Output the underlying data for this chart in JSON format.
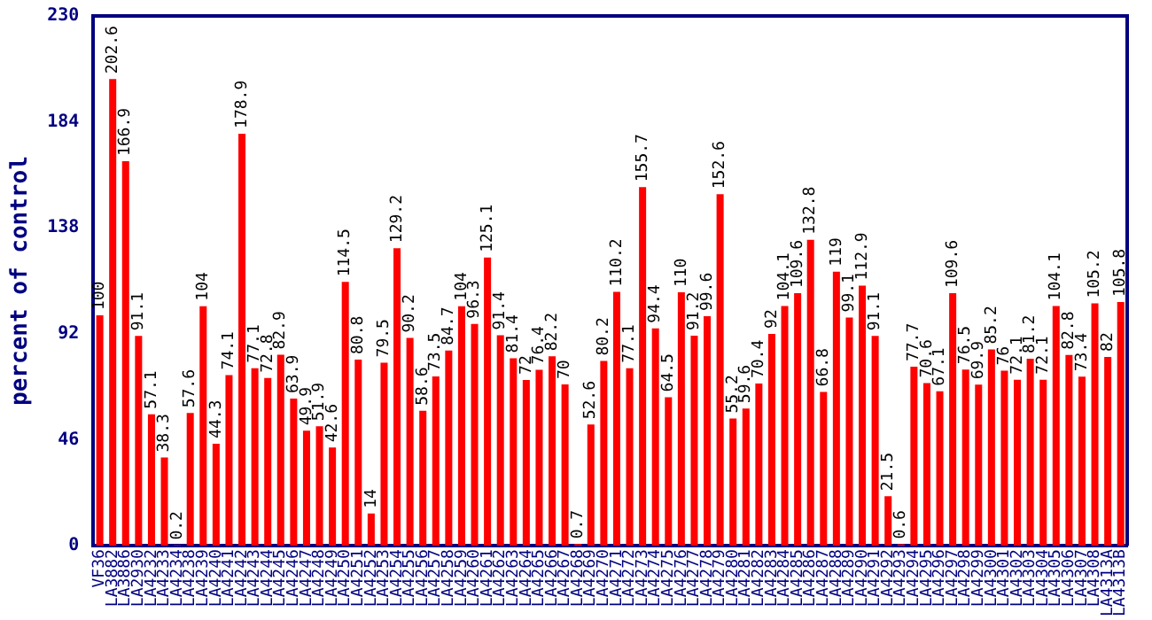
{
  "chart_data": {
    "type": "bar",
    "ylabel": "percent of control",
    "color": "#ff0000",
    "categories": [
      "VF36",
      "LA3882",
      "LA3886",
      "LA2930",
      "LA4232",
      "LA4233",
      "LA4234",
      "LA4238",
      "LA4239",
      "LA4240",
      "LA4241",
      "LA4242",
      "LA4243",
      "LA4244",
      "LA4245",
      "LA4246",
      "LA4247",
      "LA4248",
      "LA4249",
      "LA4250",
      "LA4251",
      "LA4252",
      "LA4253",
      "LA4254",
      "LA4255",
      "LA4256",
      "LA4257",
      "LA4258",
      "LA4259",
      "LA4260",
      "LA4261",
      "LA4262",
      "LA4263",
      "LA4264",
      "LA4265",
      "LA4266",
      "LA4267",
      "LA4268",
      "LA4269",
      "LA4270",
      "LA4271",
      "LA4272",
      "LA4273",
      "LA4274",
      "LA4275",
      "LA4276",
      "LA4277",
      "LA4278",
      "LA4279",
      "LA4280",
      "LA4281",
      "LA4282",
      "LA4283",
      "LA4284",
      "LA4285",
      "LA4286",
      "LA4287",
      "LA4288",
      "LA4289",
      "LA4290",
      "LA4291",
      "LA4292",
      "LA4293",
      "LA4294",
      "LA4295",
      "LA4296",
      "LA4297",
      "LA4298",
      "LA4299",
      "LA4300",
      "LA4301",
      "LA4302",
      "LA4303",
      "LA4304",
      "LA4305",
      "LA4306",
      "LA4307",
      "LA4308",
      "LA4313A",
      "LA4313B"
    ],
    "values": [
      100,
      202.6,
      166.9,
      91.1,
      57.1,
      38.3,
      0.2,
      57.6,
      104,
      44.3,
      74.1,
      178.9,
      77.1,
      72.8,
      82.9,
      63.9,
      49.9,
      51.9,
      42.6,
      114.5,
      80.8,
      14,
      79.5,
      129.2,
      90.2,
      58.6,
      73.5,
      84.7,
      104,
      96.3,
      125.1,
      91.4,
      81.4,
      72,
      76.4,
      82.2,
      70,
      0.7,
      52.6,
      80.2,
      110.2,
      77.1,
      155.7,
      94.4,
      64.5,
      110,
      91.2,
      99.6,
      152.6,
      55.2,
      59.6,
      70.4,
      92,
      104.1,
      109.6,
      132.8,
      66.8,
      119,
      99.1,
      112.9,
      91.1,
      21.5,
      0.6,
      77.7,
      70.6,
      67.1,
      109.6,
      76.5,
      69.9,
      85.2,
      76,
      72.1,
      81.2,
      72.1,
      104.1,
      82.8,
      73.4,
      105.2,
      82,
      105.8
    ],
    "ylim": [
      0,
      230
    ],
    "yticks": [
      0,
      46,
      92,
      138,
      184,
      230
    ],
    "grid": false,
    "legend": false,
    "data_labels": true
  }
}
